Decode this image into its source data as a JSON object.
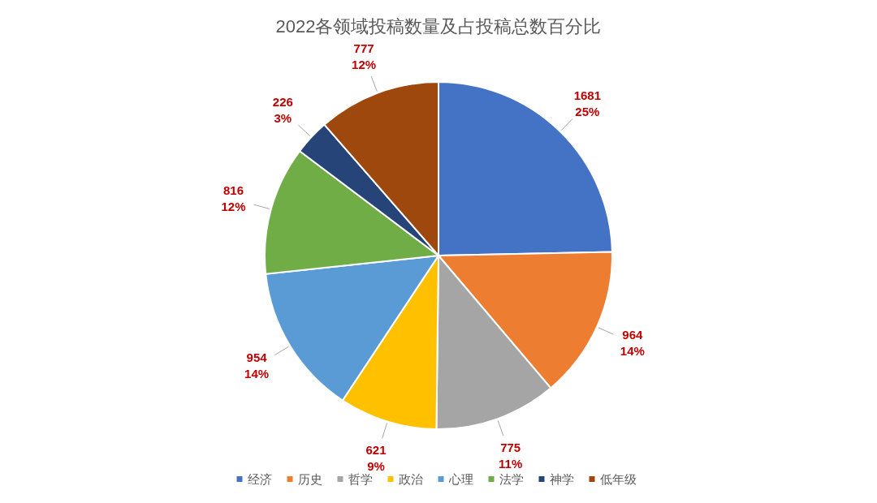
{
  "chart_data": {
    "type": "pie",
    "title": "2022各领域投稿数量及占投稿总数百分比",
    "categories": [
      "经济",
      "历史",
      "哲学",
      "政治",
      "心理",
      "法学",
      "神学",
      "低年级"
    ],
    "values": [
      1681,
      964,
      775,
      621,
      954,
      816,
      226,
      777
    ],
    "colors": [
      "#4472c4",
      "#ed7d31",
      "#a5a5a5",
      "#ffc000",
      "#5b9bd5",
      "#70ad47",
      "#264478",
      "#9e480e"
    ],
    "value_labels": [
      "1681\n25%",
      "964\n14%",
      "775\n11%",
      "621\n9%",
      "954\n14%",
      "816\n12%",
      "226\n3%",
      "777\n12%"
    ],
    "legend": "bottom"
  }
}
